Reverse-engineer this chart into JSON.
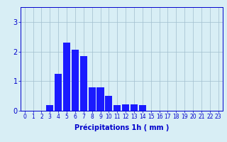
{
  "categories": [
    0,
    1,
    2,
    3,
    4,
    5,
    6,
    7,
    8,
    9,
    10,
    11,
    12,
    13,
    14,
    15,
    16,
    17,
    18,
    19,
    20,
    21,
    22,
    23
  ],
  "values": [
    0,
    0,
    0,
    0.18,
    1.25,
    2.3,
    2.05,
    1.85,
    0.8,
    0.8,
    0.5,
    0.18,
    0.22,
    0.22,
    0.18,
    0,
    0,
    0,
    0,
    0,
    0,
    0,
    0,
    0
  ],
  "bar_color": "#1a1aff",
  "background_color": "#d8eef5",
  "grid_color": "#a0bece",
  "xlabel": "Précipitations 1h ( mm )",
  "ylim": [
    0,
    3.5
  ],
  "xlim": [
    -0.5,
    23.5
  ],
  "yticks": [
    0,
    1,
    2,
    3
  ],
  "xticks": [
    0,
    1,
    2,
    3,
    4,
    5,
    6,
    7,
    8,
    9,
    10,
    11,
    12,
    13,
    14,
    15,
    16,
    17,
    18,
    19,
    20,
    21,
    22,
    23
  ],
  "tick_fontsize": 5.5,
  "xlabel_fontsize": 7.0,
  "axis_color": "#0000cc",
  "bar_width": 0.85
}
